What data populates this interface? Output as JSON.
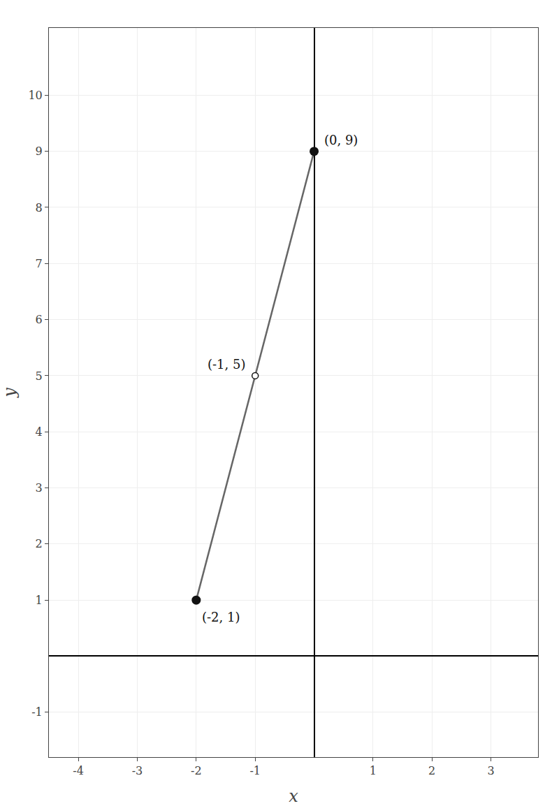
{
  "chart_data": {
    "type": "scatter",
    "xlabel": "x",
    "ylabel": "y",
    "xlim": [
      -4.5,
      3.8
    ],
    "ylim": [
      -1.8,
      11.2
    ],
    "xticks": [
      -4,
      -3,
      -2,
      -1,
      1,
      2,
      3
    ],
    "yticks": [
      -1,
      1,
      2,
      3,
      4,
      5,
      6,
      7,
      8,
      9,
      10
    ],
    "grid": true,
    "series": [
      {
        "type": "line",
        "color": "#666666",
        "x": [
          -2,
          0
        ],
        "values": [
          1,
          9
        ]
      },
      {
        "type": "scatter",
        "marker": "circle",
        "color": "#111111",
        "x": [
          -2,
          0
        ],
        "values": [
          1,
          9
        ]
      },
      {
        "type": "scatter",
        "marker": "hollow",
        "color": "#111111",
        "x": [
          -1
        ],
        "values": [
          5
        ]
      }
    ],
    "annotations": [
      {
        "x": -2,
        "y": 1,
        "text": "(-2, 1)"
      },
      {
        "x": 0,
        "y": 9,
        "text": "(0, 9)"
      },
      {
        "x": -1,
        "y": 5,
        "text": "(-1, 5)"
      }
    ]
  }
}
